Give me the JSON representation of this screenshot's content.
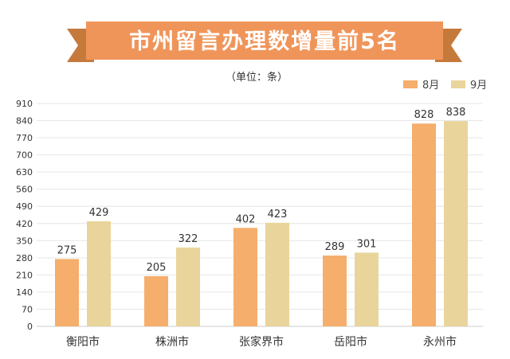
{
  "colors": {
    "banner": "#F0955A",
    "ribbon": "#C57A3C",
    "series_8": "#F5AE6C",
    "series_9": "#E9D59B",
    "grid": "#E6E6E6",
    "axis": "#CCCCCC"
  },
  "chart_data": {
    "type": "bar",
    "title": "市州留言办理数增量前5名",
    "subtitle": "（单位：条）",
    "categories": [
      "衡阳市",
      "株洲市",
      "张家界市",
      "岳阳市",
      "永州市"
    ],
    "series": [
      {
        "name": "8月",
        "values": [
          275,
          205,
          402,
          289,
          828
        ]
      },
      {
        "name": "9月",
        "values": [
          429,
          322,
          423,
          301,
          838
        ]
      }
    ],
    "yticks": [
      0,
      70,
      140,
      210,
      280,
      350,
      420,
      490,
      560,
      630,
      700,
      770,
      840,
      910
    ],
    "ylim": [
      0,
      910
    ],
    "grid": true,
    "legend": "top-right",
    "xlabel": "",
    "ylabel": ""
  }
}
